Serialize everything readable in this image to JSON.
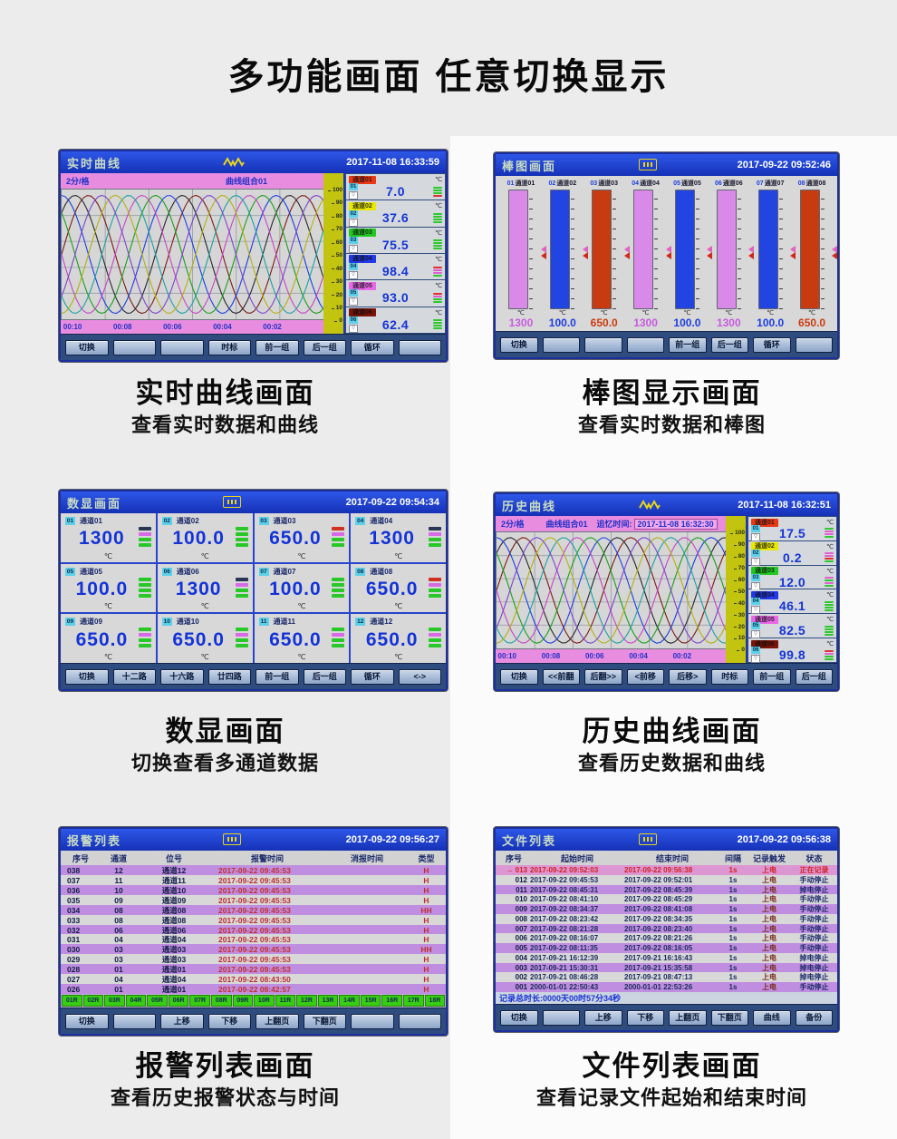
{
  "page_title": "多功能画面  任意切换显示",
  "curve_colors": [
    "#7a1a14",
    "#26262c",
    "#1b3de0",
    "#1a9e1a",
    "#c644c6",
    "#1ca0a0",
    "#b0b012",
    "#7a44cc"
  ],
  "panels": {
    "realtime": {
      "header": {
        "title": "实时曲线",
        "timestamp": "2017-11-08 16:33:59"
      },
      "subheader": {
        "rate": "2分/格",
        "group": "曲线组合01"
      },
      "y_ticks": [
        "100",
        "90",
        "80",
        "70",
        "60",
        "50",
        "40",
        "30",
        "20",
        "10",
        "0"
      ],
      "x_ticks": [
        "00:10",
        "00:08",
        "00:06",
        "00:04",
        "00:02"
      ],
      "channels": [
        {
          "num": "01",
          "label": "通道01",
          "unit": "℃",
          "value": "7.0",
          "color": "#e83814",
          "bars": [
            "#2ec82e",
            "#2ec82e",
            "#2ec82e",
            "#e03030"
          ]
        },
        {
          "num": "02",
          "label": "通道02",
          "unit": "℃",
          "value": "37.6",
          "color": "#e8e800",
          "bars": [
            "#2ec82e",
            "#2ec82e",
            "#2ec82e",
            "#2ec82e"
          ]
        },
        {
          "num": "03",
          "label": "通道03",
          "unit": "℃",
          "value": "75.5",
          "color": "#22c822",
          "bars": [
            "#2ec82e",
            "#2ec82e",
            "#2ec82e",
            "#2ec82e"
          ]
        },
        {
          "num": "04",
          "label": "通道04",
          "unit": "℃",
          "value": "98.4",
          "color": "#2238e8",
          "bars": [
            "#e03030",
            "#e060d0",
            "#e060d0",
            "#2ec82e"
          ]
        },
        {
          "num": "05",
          "label": "通道05",
          "unit": "℃",
          "value": "93.0",
          "color": "#e868e8",
          "bars": [
            "#e03030",
            "#e060d0",
            "#2ec82e",
            "#2ec82e"
          ]
        },
        {
          "num": "06",
          "label": "通道06",
          "unit": "℃",
          "value": "62.4",
          "color": "#7a1408",
          "bars": [
            "#2ec82e",
            "#2ec82e",
            "#2ec82e",
            "#2ec82e"
          ]
        }
      ],
      "buttons": [
        "切换",
        "",
        "",
        "时标",
        "前一组",
        "后一组",
        "循环",
        ""
      ],
      "caption_title": "实时曲线画面",
      "caption_sub": "查看实时数据和曲线"
    },
    "bar": {
      "header": {
        "title": "棒图画面",
        "timestamp": "2017-09-22 09:52:46"
      },
      "bars": [
        {
          "num": "01",
          "label": "通道01",
          "unit": "℃",
          "value": "1300",
          "fill": "#d98ae8",
          "value_color": "#c85ae0"
        },
        {
          "num": "02",
          "label": "通道02",
          "unit": "℃",
          "value": "100.0",
          "fill": "#2244e0",
          "value_color": "#1b3de0"
        },
        {
          "num": "03",
          "label": "通道03",
          "unit": "℃",
          "value": "650.0",
          "fill": "#c83a10",
          "value_color": "#cc3a0d"
        },
        {
          "num": "04",
          "label": "通道04",
          "unit": "℃",
          "value": "1300",
          "fill": "#d98ae8",
          "value_color": "#c85ae0"
        },
        {
          "num": "05",
          "label": "通道05",
          "unit": "℃",
          "value": "100.0",
          "fill": "#2244e0",
          "value_color": "#1b3de0"
        },
        {
          "num": "06",
          "label": "通道06",
          "unit": "℃",
          "value": "1300",
          "fill": "#d98ae8",
          "value_color": "#c85ae0"
        },
        {
          "num": "07",
          "label": "通道07",
          "unit": "℃",
          "value": "100.0",
          "fill": "#2244e0",
          "value_color": "#1b3de0"
        },
        {
          "num": "08",
          "label": "通道08",
          "unit": "℃",
          "value": "650.0",
          "fill": "#c83a10",
          "value_color": "#cc3a0d"
        }
      ],
      "buttons": [
        "切换",
        "",
        "",
        "",
        "前一组",
        "后一组",
        "循环",
        ""
      ],
      "caption_title": "棒图显示画面",
      "caption_sub": "查看实时数据和棒图"
    },
    "digital": {
      "header": {
        "title": "数显画面",
        "timestamp": "2017-09-22 09:54:34"
      },
      "cells": [
        {
          "num": "01",
          "label": "通道01",
          "value": "1300",
          "unit": "℃",
          "bars": [
            "#2a3555",
            "#d86ae8",
            "#28c828",
            "#28c828"
          ]
        },
        {
          "num": "02",
          "label": "通道02",
          "value": "100.0",
          "unit": "℃",
          "bars": [
            "#28c828",
            "#28c828",
            "#28c828",
            "#28c828"
          ]
        },
        {
          "num": "03",
          "label": "通道03",
          "value": "650.0",
          "unit": "℃",
          "bars": [
            "#d03020",
            "#d86ae8",
            "#28c828",
            "#28c828"
          ]
        },
        {
          "num": "04",
          "label": "通道04",
          "value": "1300",
          "unit": "℃",
          "bars": [
            "#2a3555",
            "#d86ae8",
            "#28c828",
            "#28c828"
          ]
        },
        {
          "num": "05",
          "label": "通道05",
          "value": "100.0",
          "unit": "℃",
          "bars": [
            "#28c828",
            "#28c828",
            "#28c828",
            "#28c828"
          ]
        },
        {
          "num": "06",
          "label": "通道06",
          "value": "1300",
          "unit": "℃",
          "bars": [
            "#2a3555",
            "#d86ae8",
            "#28c828",
            "#28c828"
          ]
        },
        {
          "num": "07",
          "label": "通道07",
          "value": "100.0",
          "unit": "℃",
          "bars": [
            "#28c828",
            "#28c828",
            "#28c828",
            "#28c828"
          ]
        },
        {
          "num": "08",
          "label": "通道08",
          "value": "650.0",
          "unit": "℃",
          "bars": [
            "#d03020",
            "#d86ae8",
            "#28c828",
            "#28c828"
          ]
        },
        {
          "num": "09",
          "label": "通道09",
          "value": "650.0",
          "unit": "℃",
          "bars": [
            "#28c828",
            "#d86ae8",
            "#28c828",
            "#28c828"
          ]
        },
        {
          "num": "10",
          "label": "通道10",
          "value": "650.0",
          "unit": "℃",
          "bars": [
            "#28c828",
            "#d86ae8",
            "#28c828",
            "#28c828"
          ]
        },
        {
          "num": "11",
          "label": "通道11",
          "value": "650.0",
          "unit": "℃",
          "bars": [
            "#28c828",
            "#d86ae8",
            "#28c828",
            "#28c828"
          ]
        },
        {
          "num": "12",
          "label": "通道12",
          "value": "650.0",
          "unit": "℃",
          "bars": [
            "#28c828",
            "#d86ae8",
            "#28c828",
            "#28c828"
          ]
        }
      ],
      "buttons": [
        "切换",
        "十二路",
        "十六路",
        "廿四路",
        "前一组",
        "后一组",
        "循环",
        "<->"
      ],
      "caption_title": "数显画面",
      "caption_sub": "切换查看多通道数据"
    },
    "history": {
      "header": {
        "title": "历史曲线",
        "timestamp": "2017-11-08 16:32:51"
      },
      "subheader": {
        "rate": "2分/格",
        "group": "曲线组合01",
        "recall_label": "追忆时间:",
        "recall_time": "2017-11-08 16:32:30"
      },
      "y_ticks": [
        "100",
        "90",
        "80",
        "70",
        "60",
        "50",
        "40",
        "30",
        "20",
        "10",
        "0"
      ],
      "x_ticks": [
        "00:10",
        "00:08",
        "00:06",
        "00:04",
        "00:02"
      ],
      "channels": [
        {
          "num": "01",
          "label": "通道01",
          "unit": "℃",
          "value": "17.5",
          "color": "#e83814",
          "bars": [
            "#2ec82e",
            "#e060d0",
            "#e060d0",
            "#2ec82e"
          ]
        },
        {
          "num": "02",
          "label": "通道02",
          "unit": "℃",
          "value": "0.2",
          "color": "#e8e800",
          "bars": [
            "#e060d0",
            "#e060d0",
            "#e03030",
            "#2ec82e"
          ]
        },
        {
          "num": "03",
          "label": "通道03",
          "unit": "℃",
          "value": "12.0",
          "color": "#22c822",
          "bars": [
            "#e060d0",
            "#2ec82e",
            "#e060d0",
            "#2ec82e"
          ]
        },
        {
          "num": "04",
          "label": "通道04",
          "unit": "℃",
          "value": "46.1",
          "color": "#2238e8",
          "bars": [
            "#2ec82e",
            "#2ec82e",
            "#2ec82e",
            "#2ec82e"
          ]
        },
        {
          "num": "05",
          "label": "通道05",
          "unit": "℃",
          "value": "82.5",
          "color": "#e868e8",
          "bars": [
            "#2ec82e",
            "#2ec82e",
            "#2ec82e",
            "#2ec82e"
          ]
        },
        {
          "num": "06",
          "label": "通道06",
          "unit": "℃",
          "value": "99.8",
          "color": "#7a1408",
          "bars": [
            "#e03030",
            "#e060d0",
            "#2ec82e",
            "#2ec82e"
          ]
        }
      ],
      "buttons": [
        "切换",
        "<<前翻",
        "后翻>>",
        "<前移",
        "后移>",
        "时标",
        "前一组",
        "后一组"
      ],
      "caption_title": "历史曲线画面",
      "caption_sub": "查看历史数据和曲线"
    },
    "alarm": {
      "header": {
        "title": "报警列表",
        "timestamp": "2017-09-22 09:56:27"
      },
      "columns": [
        "序号",
        "通道",
        "位号",
        "报警时间",
        "消报时间",
        "类型"
      ],
      "rows": [
        {
          "seq": "038",
          "chan": "12",
          "tag": "通道12",
          "time": "2017-09-22 09:45:53",
          "clear": "",
          "type": "H"
        },
        {
          "seq": "037",
          "chan": "11",
          "tag": "通道11",
          "time": "2017-09-22 09:45:53",
          "clear": "",
          "type": "H"
        },
        {
          "seq": "036",
          "chan": "10",
          "tag": "通道10",
          "time": "2017-09-22 09:45:53",
          "clear": "",
          "type": "H"
        },
        {
          "seq": "035",
          "chan": "09",
          "tag": "通道09",
          "time": "2017-09-22 09:45:53",
          "clear": "",
          "type": "H"
        },
        {
          "seq": "034",
          "chan": "08",
          "tag": "通道08",
          "time": "2017-09-22 09:45:53",
          "clear": "",
          "type": "HH"
        },
        {
          "seq": "033",
          "chan": "08",
          "tag": "通道08",
          "time": "2017-09-22 09:45:53",
          "clear": "",
          "type": "H"
        },
        {
          "seq": "032",
          "chan": "06",
          "tag": "通道06",
          "time": "2017-09-22 09:45:53",
          "clear": "",
          "type": "H"
        },
        {
          "seq": "031",
          "chan": "04",
          "tag": "通道04",
          "time": "2017-09-22 09:45:53",
          "clear": "",
          "type": "H"
        },
        {
          "seq": "030",
          "chan": "03",
          "tag": "通道03",
          "time": "2017-09-22 09:45:53",
          "clear": "",
          "type": "HH"
        },
        {
          "seq": "029",
          "chan": "03",
          "tag": "通道03",
          "time": "2017-09-22 09:45:53",
          "clear": "",
          "type": "H"
        },
        {
          "seq": "028",
          "chan": "01",
          "tag": "通道01",
          "time": "2017-09-22 09:45:53",
          "clear": "",
          "type": "H"
        },
        {
          "seq": "027",
          "chan": "04",
          "tag": "通道04",
          "time": "2017-09-22 08:43:50",
          "clear": "",
          "type": "H"
        },
        {
          "seq": "026",
          "chan": "01",
          "tag": "通道01",
          "time": "2017-09-22 08:42:57",
          "clear": "",
          "type": "H"
        }
      ],
      "tabs": [
        "01R",
        "02R",
        "03R",
        "04R",
        "05R",
        "06R",
        "07R",
        "08R",
        "09R",
        "10R",
        "11R",
        "12R",
        "13R",
        "14R",
        "15R",
        "16R",
        "17R",
        "18R"
      ],
      "buttons": [
        "切换",
        "",
        "上移",
        "下移",
        "上翻页",
        "下翻页",
        "",
        ""
      ],
      "caption_title": "报警列表画面",
      "caption_sub": "查看历史报警状态与时间"
    },
    "files": {
      "header": {
        "title": "文件列表",
        "timestamp": "2017-09-22 09:56:38"
      },
      "columns": [
        "序号",
        "起始时间",
        "结束时间",
        "间隔",
        "记录触发",
        "状态"
      ],
      "current_marker": "→",
      "rows": [
        {
          "seq": "013",
          "start": "2017-09-22 09:52:03",
          "end": "2017-09-22 09:56:38",
          "interval": "1s",
          "trigger": "上电",
          "status": "正在记录",
          "current": true
        },
        {
          "seq": "012",
          "start": "2017-09-22 09:45:53",
          "end": "2017-09-22 09:52:01",
          "interval": "1s",
          "trigger": "上电",
          "status": "手动停止",
          "current": false
        },
        {
          "seq": "011",
          "start": "2017-09-22 08:45:31",
          "end": "2017-09-22 08:45:39",
          "interval": "1s",
          "trigger": "上电",
          "status": "掉电停止",
          "current": false
        },
        {
          "seq": "010",
          "start": "2017-09-22 08:41:10",
          "end": "2017-09-22 08:45:29",
          "interval": "1s",
          "trigger": "上电",
          "status": "手动停止",
          "current": false
        },
        {
          "seq": "009",
          "start": "2017-09-22 08:34:37",
          "end": "2017-09-22 08:41:08",
          "interval": "1s",
          "trigger": "上电",
          "status": "手动停止",
          "current": false
        },
        {
          "seq": "008",
          "start": "2017-09-22 08:23:42",
          "end": "2017-09-22 08:34:35",
          "interval": "1s",
          "trigger": "上电",
          "status": "手动停止",
          "current": false
        },
        {
          "seq": "007",
          "start": "2017-09-22 08:21:28",
          "end": "2017-09-22 08:23:40",
          "interval": "1s",
          "trigger": "上电",
          "status": "手动停止",
          "current": false
        },
        {
          "seq": "006",
          "start": "2017-09-22 08:16:07",
          "end": "2017-09-22 08:21:26",
          "interval": "1s",
          "trigger": "上电",
          "status": "手动停止",
          "current": false
        },
        {
          "seq": "005",
          "start": "2017-09-22 08:11:35",
          "end": "2017-09-22 08:16:05",
          "interval": "1s",
          "trigger": "上电",
          "status": "手动停止",
          "current": false
        },
        {
          "seq": "004",
          "start": "2017-09-21 16:12:39",
          "end": "2017-09-21 16:16:43",
          "interval": "1s",
          "trigger": "上电",
          "status": "掉电停止",
          "current": false
        },
        {
          "seq": "003",
          "start": "2017-09-21 15:30:31",
          "end": "2017-09-21 15:35:58",
          "interval": "1s",
          "trigger": "上电",
          "status": "掉电停止",
          "current": false
        },
        {
          "seq": "002",
          "start": "2017-09-21 08:46:28",
          "end": "2017-09-21 08:47:13",
          "interval": "1s",
          "trigger": "上电",
          "status": "掉电停止",
          "current": false
        },
        {
          "seq": "001",
          "start": "2000-01-01 22:50:43",
          "end": "2000-01-01 22:53:26",
          "interval": "1s",
          "trigger": "上电",
          "status": "手动停止",
          "current": false
        }
      ],
      "footer": "记录总时长:0000天00时57分34秒",
      "buttons": [
        "切换",
        "",
        "上移",
        "下移",
        "上翻页",
        "下翻页",
        "曲线",
        "备份"
      ],
      "caption_title": "文件列表画面",
      "caption_sub": "查看记录文件起始和结束时间"
    }
  }
}
